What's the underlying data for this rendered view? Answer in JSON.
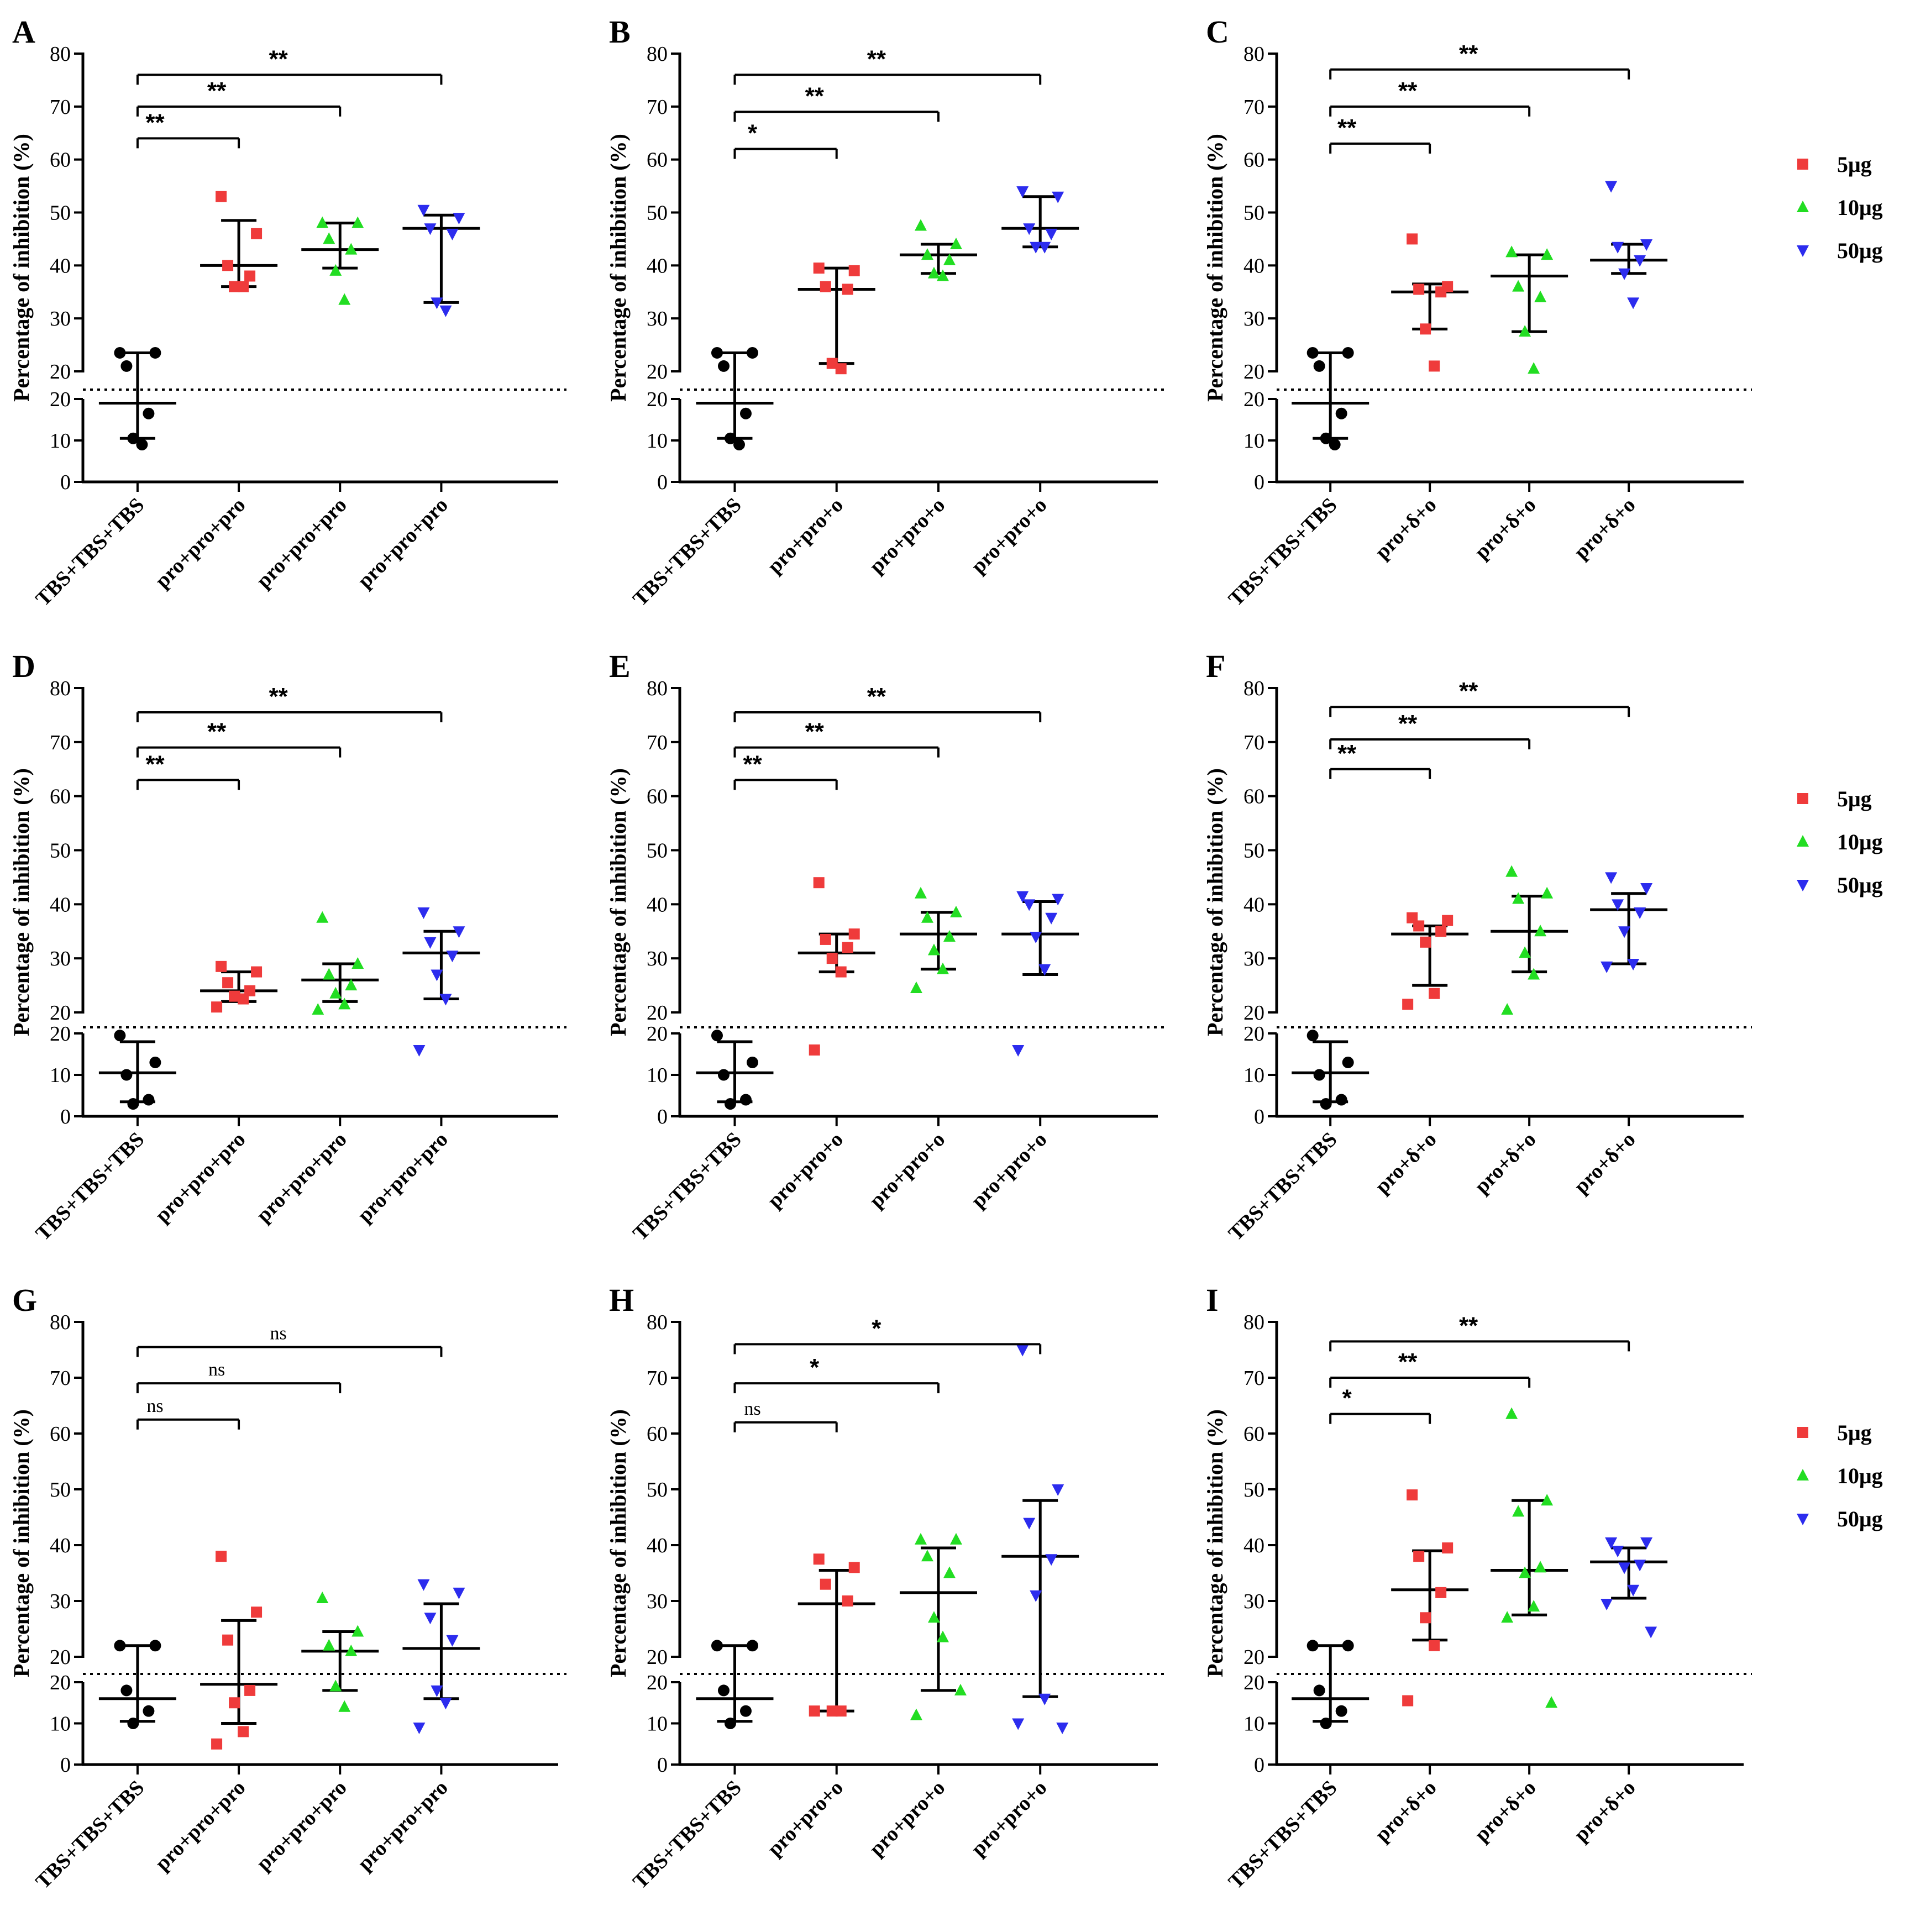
{
  "colors": {
    "s5": "#ef3b3b",
    "s10": "#22dd22",
    "s50": "#2c2cee",
    "ctrl": "#000000"
  },
  "legend": {
    "labels": [
      "5μg",
      "10μg",
      "50μg"
    ]
  },
  "y_axis_label": "Percentage of inhibition (%)",
  "chart_data": [
    {
      "panel": "A",
      "type": "scatter",
      "ylabel": "Percentage of inhibition (%)",
      "upper_ylim": [
        20,
        80
      ],
      "lower_ylim": [
        0,
        20
      ],
      "categories": [
        "TBS+TBS+TBS",
        "pro+pro+pro",
        "pro+pro+pro",
        "pro+pro+pro"
      ],
      "groups": [
        {
          "series": "control",
          "points": [
            23.5,
            23.5,
            21,
            16.5,
            10.5,
            9
          ],
          "mean": 19,
          "err": [
            10.5,
            23.5
          ]
        },
        {
          "series": "5μg",
          "points": [
            53,
            46,
            40,
            38,
            36,
            36
          ],
          "mean": 40,
          "err": [
            36,
            48.5
          ]
        },
        {
          "series": "10μg",
          "points": [
            48,
            48,
            45,
            43,
            39,
            33.5
          ],
          "mean": 43,
          "err": [
            39.5,
            48
          ]
        },
        {
          "series": "50μg",
          "points": [
            50.5,
            49,
            47,
            46,
            33,
            31.5
          ],
          "mean": 47,
          "err": [
            33,
            49.5
          ]
        }
      ],
      "comparisons": [
        {
          "label": "**",
          "y": 64
        },
        {
          "label": "**",
          "y": 70
        },
        {
          "label": "**",
          "y": 76
        }
      ],
      "show_legend": false
    },
    {
      "panel": "B",
      "type": "scatter",
      "ylabel": "Percentage of inhibition (%)",
      "upper_ylim": [
        20,
        80
      ],
      "lower_ylim": [
        0,
        20
      ],
      "categories": [
        "TBS+TBS+TBS",
        "pro+pro+o",
        "pro+pro+o",
        "pro+pro+o"
      ],
      "groups": [
        {
          "series": "control",
          "points": [
            23.5,
            23.5,
            21,
            16.5,
            10.5,
            9
          ],
          "mean": 19,
          "err": [
            10.5,
            23.5
          ]
        },
        {
          "series": "5μg",
          "points": [
            39.5,
            39,
            36,
            35.5,
            21.5,
            20.5
          ],
          "mean": 35.5,
          "err": [
            21.5,
            39.5
          ]
        },
        {
          "series": "10μg",
          "points": [
            47.5,
            44,
            42,
            41,
            38.5,
            38
          ],
          "mean": 42,
          "err": [
            38.5,
            44
          ]
        },
        {
          "series": "50μg",
          "points": [
            54,
            53,
            47,
            46,
            43.5,
            43.5
          ],
          "mean": 47,
          "err": [
            43.5,
            53
          ]
        }
      ],
      "comparisons": [
        {
          "label": "*",
          "y": 62
        },
        {
          "label": "**",
          "y": 69
        },
        {
          "label": "**",
          "y": 76
        }
      ],
      "show_legend": false
    },
    {
      "panel": "C",
      "type": "scatter",
      "ylabel": "Percentage of inhibition (%)",
      "upper_ylim": [
        20,
        80
      ],
      "lower_ylim": [
        0,
        20
      ],
      "categories": [
        "TBS+TBS+TBS",
        "pro+δ+o",
        "pro+δ+o",
        "pro+δ+o"
      ],
      "groups": [
        {
          "series": "control",
          "points": [
            23.5,
            23.5,
            21,
            16.5,
            10.5,
            9
          ],
          "mean": 19,
          "err": [
            10.5,
            23.5
          ]
        },
        {
          "series": "5μg",
          "points": [
            45,
            36,
            35.5,
            35,
            28,
            21
          ],
          "mean": 35,
          "err": [
            28,
            36.5
          ]
        },
        {
          "series": "10μg",
          "points": [
            42.5,
            42,
            36,
            34,
            27.5,
            20.5
          ],
          "mean": 38,
          "err": [
            27.5,
            42
          ]
        },
        {
          "series": "50μg",
          "points": [
            55,
            44,
            43.5,
            41,
            38.5,
            33
          ],
          "mean": 41,
          "err": [
            38.5,
            44
          ]
        }
      ],
      "comparisons": [
        {
          "label": "**",
          "y": 63
        },
        {
          "label": "**",
          "y": 70
        },
        {
          "label": "**",
          "y": 77
        }
      ],
      "show_legend": true
    },
    {
      "panel": "D",
      "type": "scatter",
      "ylabel": "Percentage of inhibition (%)",
      "upper_ylim": [
        20,
        80
      ],
      "lower_ylim": [
        0,
        20
      ],
      "categories": [
        "TBS+TBS+TBS",
        "pro+pro+pro",
        "pro+pro+pro",
        "pro+pro+pro"
      ],
      "groups": [
        {
          "series": "control",
          "points": [
            19.5,
            13,
            10,
            4,
            3
          ],
          "mean": 10.5,
          "err": [
            3.5,
            18
          ]
        },
        {
          "series": "5μg",
          "points": [
            28.5,
            27.5,
            25.5,
            24,
            23,
            22.5,
            21
          ],
          "mean": 24,
          "err": [
            22,
            27.5
          ]
        },
        {
          "series": "10μg",
          "points": [
            37.5,
            29,
            27,
            25,
            23.5,
            21.5,
            20.5
          ],
          "mean": 26,
          "err": [
            22,
            29
          ]
        },
        {
          "series": "50μg",
          "points": [
            38.5,
            35,
            33,
            30.5,
            27,
            22.5,
            16
          ],
          "mean": 31,
          "err": [
            22.5,
            35
          ]
        }
      ],
      "comparisons": [
        {
          "label": "**",
          "y": 63
        },
        {
          "label": "**",
          "y": 69
        },
        {
          "label": "**",
          "y": 75.5
        }
      ],
      "show_legend": false
    },
    {
      "panel": "E",
      "type": "scatter",
      "ylabel": "Percentage of inhibition (%)",
      "upper_ylim": [
        20,
        80
      ],
      "lower_ylim": [
        0,
        20
      ],
      "categories": [
        "TBS+TBS+TBS",
        "pro+pro+o",
        "pro+pro+o",
        "pro+pro+o"
      ],
      "groups": [
        {
          "series": "control",
          "points": [
            19.5,
            13,
            10,
            4,
            3
          ],
          "mean": 10.5,
          "err": [
            3.5,
            18
          ]
        },
        {
          "series": "5μg",
          "points": [
            44,
            34.5,
            33.5,
            32,
            30,
            27.5,
            16
          ],
          "mean": 31,
          "err": [
            27.5,
            34.5
          ]
        },
        {
          "series": "10μg",
          "points": [
            42,
            38.5,
            37.5,
            34,
            31.5,
            28,
            24.5
          ],
          "mean": 34.5,
          "err": [
            28,
            38.5
          ]
        },
        {
          "series": "50μg",
          "points": [
            41.5,
            41,
            40,
            37.5,
            34,
            28,
            16
          ],
          "mean": 34.5,
          "err": [
            27,
            40.5
          ]
        }
      ],
      "comparisons": [
        {
          "label": "**",
          "y": 63
        },
        {
          "label": "**",
          "y": 69
        },
        {
          "label": "**",
          "y": 75.5
        }
      ],
      "show_legend": false
    },
    {
      "panel": "F",
      "type": "scatter",
      "ylabel": "Percentage of inhibition (%)",
      "upper_ylim": [
        20,
        80
      ],
      "lower_ylim": [
        0,
        20
      ],
      "categories": [
        "TBS+TBS+TBS",
        "pro+δ+o",
        "pro+δ+o",
        "pro+δ+o"
      ],
      "groups": [
        {
          "series": "control",
          "points": [
            19.5,
            13,
            10,
            4,
            3
          ],
          "mean": 10.5,
          "err": [
            3.5,
            18
          ]
        },
        {
          "series": "5μg",
          "points": [
            37.5,
            37,
            36,
            35,
            33,
            23.5,
            21.5
          ],
          "mean": 34.5,
          "err": [
            25,
            36
          ]
        },
        {
          "series": "10μg",
          "points": [
            46,
            42,
            41,
            35,
            31,
            27,
            20.5
          ],
          "mean": 35,
          "err": [
            27.5,
            41.5
          ]
        },
        {
          "series": "50μg",
          "points": [
            45,
            43,
            40,
            38.5,
            35,
            29,
            28.5
          ],
          "mean": 39,
          "err": [
            29,
            42
          ]
        }
      ],
      "comparisons": [
        {
          "label": "**",
          "y": 65
        },
        {
          "label": "**",
          "y": 70.5
        },
        {
          "label": "**",
          "y": 76.5
        }
      ],
      "show_legend": true
    },
    {
      "panel": "G",
      "type": "scatter",
      "ylabel": "Percentage of inhibition (%)",
      "upper_ylim": [
        20,
        80
      ],
      "lower_ylim": [
        0,
        20
      ],
      "categories": [
        "TBS+TBS+TBS",
        "pro+pro+pro",
        "pro+pro+pro",
        "pro+pro+pro"
      ],
      "groups": [
        {
          "series": "control",
          "points": [
            22,
            22,
            18,
            13,
            10
          ],
          "mean": 16,
          "err": [
            10.5,
            22
          ]
        },
        {
          "series": "5μg",
          "points": [
            38,
            28,
            23,
            18,
            15,
            8,
            5
          ],
          "mean": 19.5,
          "err": [
            10,
            26.5
          ]
        },
        {
          "series": "10μg",
          "points": [
            30.5,
            24.5,
            22,
            21,
            19,
            14
          ],
          "mean": 21,
          "err": [
            18,
            24.5
          ]
        },
        {
          "series": "50μg",
          "points": [
            33,
            31.5,
            27,
            23,
            18,
            15,
            9
          ],
          "mean": 21.5,
          "err": [
            16,
            29.5
          ]
        }
      ],
      "comparisons": [
        {
          "label": "ns",
          "y": 62.5
        },
        {
          "label": "ns",
          "y": 69
        },
        {
          "label": "ns",
          "y": 75.5
        }
      ],
      "show_legend": false
    },
    {
      "panel": "H",
      "type": "scatter",
      "ylabel": "Percentage of inhibition (%)",
      "upper_ylim": [
        20,
        80
      ],
      "lower_ylim": [
        0,
        20
      ],
      "categories": [
        "TBS+TBS+TBS",
        "pro+pro+o",
        "pro+pro+o",
        "pro+pro+o"
      ],
      "groups": [
        {
          "series": "control",
          "points": [
            22,
            22,
            18,
            13,
            10
          ],
          "mean": 16,
          "err": [
            10.5,
            22
          ]
        },
        {
          "series": "5μg",
          "points": [
            37.5,
            36,
            33,
            30,
            13,
            13,
            13
          ],
          "mean": 29.5,
          "err": [
            13,
            35.5
          ]
        },
        {
          "series": "10μg",
          "points": [
            41,
            41,
            38,
            35,
            27,
            23.5,
            12,
            18
          ],
          "mean": 31.5,
          "err": [
            18,
            39.5
          ]
        },
        {
          "series": "50μg",
          "points": [
            75,
            50,
            44,
            37.5,
            31,
            16,
            10,
            9
          ],
          "mean": 38,
          "err": [
            16.5,
            48
          ]
        }
      ],
      "comparisons": [
        {
          "label": "ns",
          "y": 62
        },
        {
          "label": "*",
          "y": 69
        },
        {
          "label": "*",
          "y": 76
        }
      ],
      "show_legend": false
    },
    {
      "panel": "I",
      "type": "scatter",
      "ylabel": "Percentage of inhibition (%)",
      "upper_ylim": [
        20,
        80
      ],
      "lower_ylim": [
        0,
        20
      ],
      "categories": [
        "TBS+TBS+TBS",
        "pro+δ+o",
        "pro+δ+o",
        "pro+δ+o"
      ],
      "groups": [
        {
          "series": "control",
          "points": [
            22,
            22,
            18,
            13,
            10
          ],
          "mean": 16,
          "err": [
            10.5,
            22
          ]
        },
        {
          "series": "5μg",
          "points": [
            49,
            39.5,
            38,
            31.5,
            27,
            22,
            15.5
          ],
          "mean": 32,
          "err": [
            23,
            39
          ]
        },
        {
          "series": "10μg",
          "points": [
            63.5,
            48,
            46,
            36,
            35,
            29,
            27,
            15
          ],
          "mean": 35.5,
          "err": [
            27.5,
            48
          ]
        },
        {
          "series": "50μg",
          "points": [
            40.5,
            40.5,
            39,
            36.5,
            36,
            32,
            29.5,
            24.5
          ],
          "mean": 37,
          "err": [
            30.5,
            39.5
          ]
        }
      ],
      "comparisons": [
        {
          "label": "*",
          "y": 63.5
        },
        {
          "label": "**",
          "y": 70
        },
        {
          "label": "**",
          "y": 76.5
        }
      ],
      "show_legend": true
    }
  ]
}
